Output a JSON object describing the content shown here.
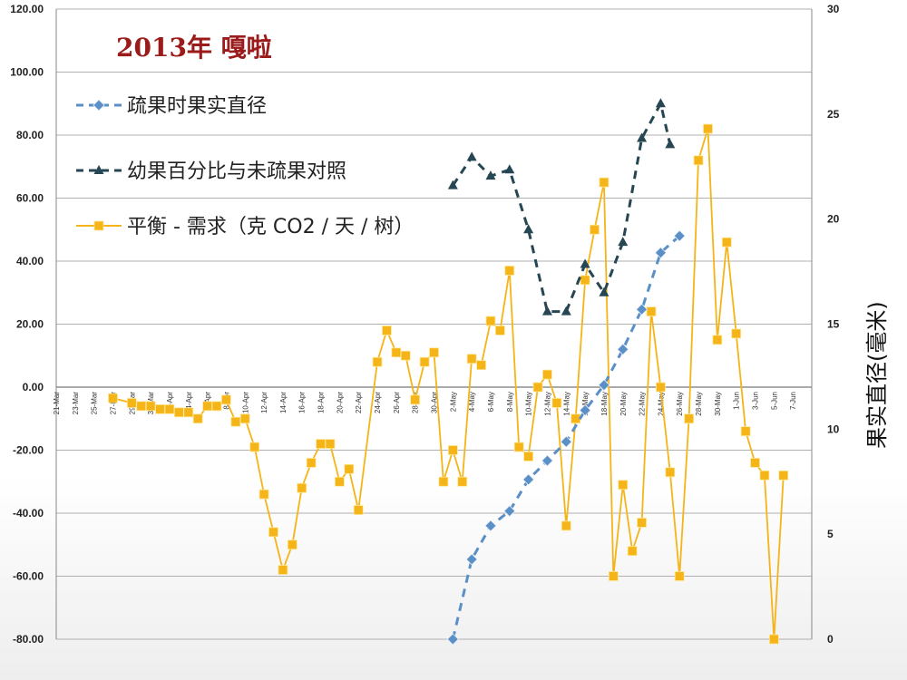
{
  "chart_data": {
    "type": "line",
    "title": "2013年 嘎啦",
    "ylabel_right": "果实直径(毫米)",
    "left_axis": {
      "min": -80,
      "max": 120,
      "step": 20,
      "tick_labels": [
        "-80.00",
        "-60.00",
        "-40.00",
        "-20.00",
        "0.00",
        "20.00",
        "40.00",
        "60.00",
        "80.00",
        "100.00",
        "120.00"
      ]
    },
    "right_axis": {
      "min": 0,
      "max": 30,
      "step": 5,
      "tick_labels": [
        "0",
        "5",
        "10",
        "15",
        "20",
        "25",
        "30"
      ]
    },
    "x_tick_labels": [
      "21-Mar",
      "23-Mar",
      "25-Mar",
      "27-Mar",
      "29-Mar",
      "31-Mar",
      "2-Apr",
      "4-Apr",
      "6-Apr",
      "8-Apr",
      "10-Apr",
      "12-Apr",
      "14-Apr",
      "16-Apr",
      "18-Apr",
      "20-Apr",
      "22-Apr",
      "24-Apr",
      "26-Apr",
      "28-Apr",
      "30-Apr",
      "2-May",
      "4-May",
      "6-May",
      "8-May",
      "10-May",
      "12-May",
      "14-May",
      "16-May",
      "18-May",
      "20-May",
      "22-May",
      "24-May",
      "26-May",
      "28-May",
      "30-May",
      "1-Jun",
      "3-Jun",
      "5-Jun",
      "7-Jun"
    ],
    "grid": true,
    "legend_position": "top-left",
    "series": [
      {
        "name": "疏果时果实直径",
        "axis": "right",
        "color": "#5b8fc7",
        "style": "dashed",
        "marker": "diamond",
        "points": [
          [
            42,
            0
          ],
          [
            44,
            3.8
          ],
          [
            46,
            5.4
          ],
          [
            48,
            6.1
          ],
          [
            50,
            7.6
          ],
          [
            52,
            8.5
          ],
          [
            54,
            9.4
          ],
          [
            56,
            10.9
          ],
          [
            58,
            12.1
          ],
          [
            60,
            13.8
          ],
          [
            62,
            15.7
          ],
          [
            64,
            18.4
          ],
          [
            66,
            19.2
          ]
        ]
      },
      {
        "name": "幼果百分比与未疏果对照",
        "axis": "left",
        "color": "#264653",
        "style": "dashed",
        "marker": "triangle",
        "points": [
          [
            42,
            64
          ],
          [
            44,
            73
          ],
          [
            46,
            67
          ],
          [
            48,
            69
          ],
          [
            50,
            50
          ],
          [
            52,
            24
          ],
          [
            54,
            24
          ],
          [
            56,
            39
          ],
          [
            58,
            30
          ],
          [
            60,
            46
          ],
          [
            62,
            79
          ],
          [
            64,
            90
          ],
          [
            65,
            77
          ]
        ]
      },
      {
        "name": "平衡 - 需求（克 CO2 / 天 / 树）",
        "axis": "left",
        "color": "#f5b417",
        "style": "solid",
        "marker": "square",
        "points": [
          [
            6,
            -3.5
          ],
          [
            8,
            -5
          ],
          [
            9,
            -6
          ],
          [
            10,
            -6
          ],
          [
            11,
            -7
          ],
          [
            12,
            -7
          ],
          [
            13,
            -8
          ],
          [
            14,
            -8
          ],
          [
            15,
            -10
          ],
          [
            16,
            -6
          ],
          [
            17,
            -6
          ],
          [
            18,
            -4
          ],
          [
            19,
            -11
          ],
          [
            20,
            -10
          ],
          [
            21,
            -19
          ],
          [
            22,
            -34
          ],
          [
            23,
            -46
          ],
          [
            24,
            -58
          ],
          [
            25,
            -50
          ],
          [
            26,
            -32
          ],
          [
            27,
            -24
          ],
          [
            28,
            -18
          ],
          [
            29,
            -18
          ],
          [
            30,
            -30
          ],
          [
            31,
            -26
          ],
          [
            32,
            -39
          ],
          [
            34,
            8
          ],
          [
            35,
            18
          ],
          [
            36,
            11
          ],
          [
            37,
            10
          ],
          [
            38,
            -4
          ],
          [
            39,
            8
          ],
          [
            40,
            11
          ],
          [
            41,
            -30
          ],
          [
            42,
            -20
          ],
          [
            43,
            -30
          ],
          [
            44,
            9
          ],
          [
            45,
            7
          ],
          [
            46,
            21
          ],
          [
            47,
            18
          ],
          [
            48,
            37
          ],
          [
            49,
            -19
          ],
          [
            50,
            -22
          ],
          [
            51,
            0
          ],
          [
            52,
            4
          ],
          [
            53,
            -5
          ],
          [
            54,
            -44
          ],
          [
            55,
            -10
          ],
          [
            56,
            34
          ],
          [
            57,
            50
          ],
          [
            58,
            65
          ],
          [
            59,
            -60
          ],
          [
            60,
            -31
          ],
          [
            61,
            -52
          ],
          [
            62,
            -43
          ],
          [
            63,
            24
          ],
          [
            64,
            0
          ],
          [
            65,
            -27
          ],
          [
            66,
            -60
          ],
          [
            67,
            -10
          ],
          [
            68,
            72
          ],
          [
            69,
            82
          ],
          [
            70,
            15
          ],
          [
            71,
            46
          ],
          [
            72,
            17
          ],
          [
            73,
            -14
          ],
          [
            74,
            -24
          ],
          [
            75,
            -28
          ],
          [
            76,
            -80
          ],
          [
            77,
            -28
          ]
        ]
      }
    ]
  }
}
